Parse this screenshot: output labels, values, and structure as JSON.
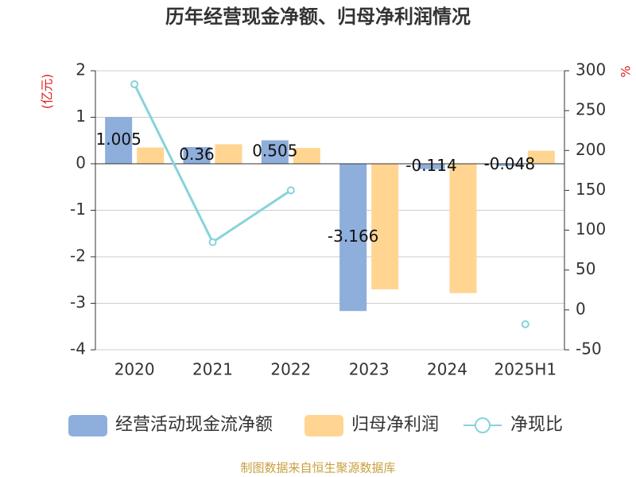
{
  "chart_data": {
    "type": "bar",
    "title": "历年经营现金净额、归母净利润情况",
    "y_label": "(亿元)",
    "y2_label": "%",
    "source": "制图数据来自恒生聚源数据库",
    "categories": [
      "2020",
      "2021",
      "2022",
      "2023",
      "2024",
      "2025H1"
    ],
    "series": [
      {
        "name": "经营活动现金流净额",
        "color": "#8eaedb",
        "values": [
          1.005,
          0.36,
          0.505,
          -3.166,
          -0.114,
          -0.048
        ],
        "data_labels": true
      },
      {
        "name": "归母净利润",
        "color": "#ffd591",
        "values": [
          0.35,
          0.42,
          0.34,
          -2.7,
          -2.78,
          0.28
        ]
      },
      {
        "name": "净现比",
        "type": "line",
        "axis": "y2",
        "color": "#86d3da",
        "values": [
          283,
          85,
          150,
          null,
          null,
          -18
        ]
      }
    ],
    "ylim": [
      -4,
      2
    ],
    "yticks": [
      -4,
      -3,
      -2,
      -1,
      0,
      1,
      2
    ],
    "y2lim": [
      -50,
      300
    ],
    "y2ticks": [
      -50,
      0,
      50,
      100,
      150,
      200,
      250,
      300
    ],
    "grid": true
  }
}
